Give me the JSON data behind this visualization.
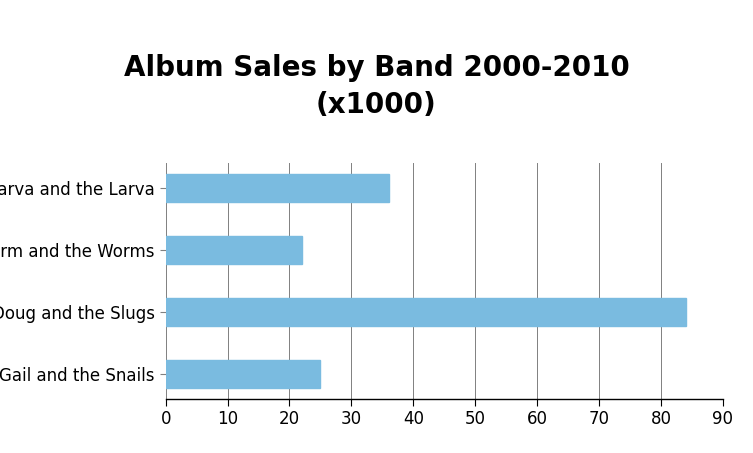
{
  "title": "Album Sales by Band 2000-2010\n(x1000)",
  "categories": [
    "Marva and the Larva",
    "Sherm and the Worms",
    "Doug and the Slugs",
    "Gail and the Snails"
  ],
  "values": [
    36,
    22,
    84,
    25
  ],
  "bar_color": "#7abbe0",
  "xlim": [
    0,
    90
  ],
  "xticks": [
    0,
    10,
    20,
    30,
    40,
    50,
    60,
    70,
    80,
    90
  ],
  "title_fontsize": 20,
  "tick_fontsize": 12,
  "background_color": "#ffffff",
  "bar_height": 0.45
}
